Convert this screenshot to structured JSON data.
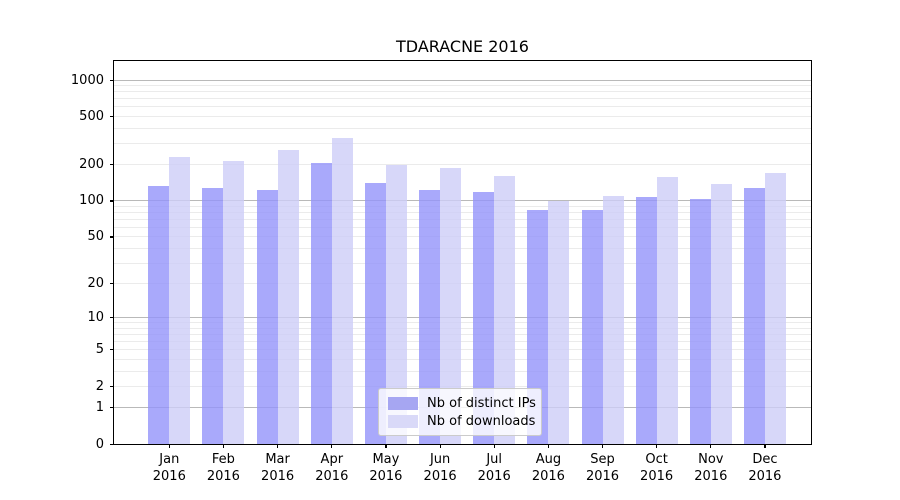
{
  "chart_data": {
    "type": "bar",
    "title": "TDARACNE 2016",
    "categories": [
      "Jan",
      "Feb",
      "Mar",
      "Apr",
      "May",
      "Jun",
      "Jul",
      "Aug",
      "Sep",
      "Oct",
      "Nov",
      "Dec"
    ],
    "category_year": "2016",
    "series": [
      {
        "name": "Nb of distinct IPs",
        "values": [
          133,
          127,
          123,
          207,
          141,
          123,
          119,
          84,
          84,
          108,
          103,
          127
        ],
        "color": "rgba(148,148,250,0.8)",
        "swatch_color": "#a6a6f2"
      },
      {
        "name": "Nb of downloads",
        "values": [
          230,
          216,
          267,
          330,
          197,
          187,
          161,
          99,
          110,
          157,
          138,
          170
        ],
        "color": "rgba(205,205,248,0.8)",
        "swatch_color": "#d9d9f8"
      }
    ],
    "yscale": "log1p",
    "ylim": [
      0,
      1436
    ],
    "yticks": [
      1000,
      500,
      200,
      100,
      50,
      20,
      10,
      5,
      2,
      1,
      0
    ],
    "grid": true,
    "grid_major_values": [
      1,
      10,
      100,
      1000
    ],
    "grid_minor_decades": [
      1,
      10,
      100
    ],
    "legend_position": "lower-center",
    "colors": {
      "grid_minor": "#ebebeb",
      "grid_major": "#b9b9b9",
      "axis": "#000000"
    }
  }
}
